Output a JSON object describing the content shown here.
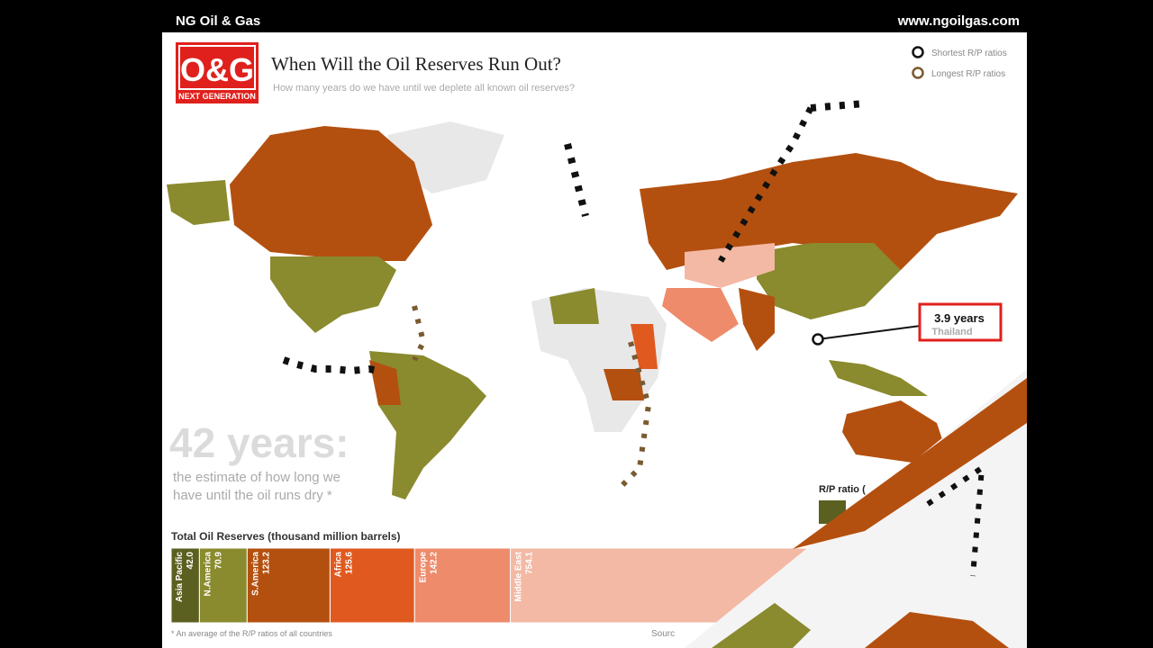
{
  "header": {
    "brand": "NG Oil & Gas",
    "url": "www.ngoilgas.com"
  },
  "logo": {
    "mark": "O&G",
    "tagline": "NEXT GENERATION"
  },
  "title": "When Will the Oil Reserves Run Out?",
  "subtitle": "How many years do we have until we deplete all known oil reserves?",
  "legend": [
    "Shortest R/P ratios",
    "Longest R/P ratios"
  ],
  "callout": {
    "value": "3.9 years",
    "country": "Thailand"
  },
  "headline": {
    "big": "42 years:",
    "line1": "the estimate of how long we",
    "line2": "have until the oil runs dry *"
  },
  "rp_legend": "R/P ratio (",
  "footnotes": [
    "* An average of the R/P ratios of all countries",
    "Sourc"
  ],
  "chart_data": {
    "type": "bar",
    "title": "Total Oil Reserves (thousand million barrels)",
    "categories": [
      "Asia Pacific",
      "N.America",
      "S.America",
      "Africa",
      "Europe",
      "Middle East"
    ],
    "values": [
      42.0,
      70.9,
      123.2,
      125.6,
      142.2,
      754.1
    ],
    "value_labels": [
      "42.0",
      "70.9",
      "123.2",
      "125.6",
      "142.2",
      "754.1"
    ],
    "colors": [
      "#5b5f1f",
      "#8a8a2e",
      "#b4500f",
      "#e0591f",
      "#ee8b6b",
      "#f3b9a5"
    ]
  }
}
